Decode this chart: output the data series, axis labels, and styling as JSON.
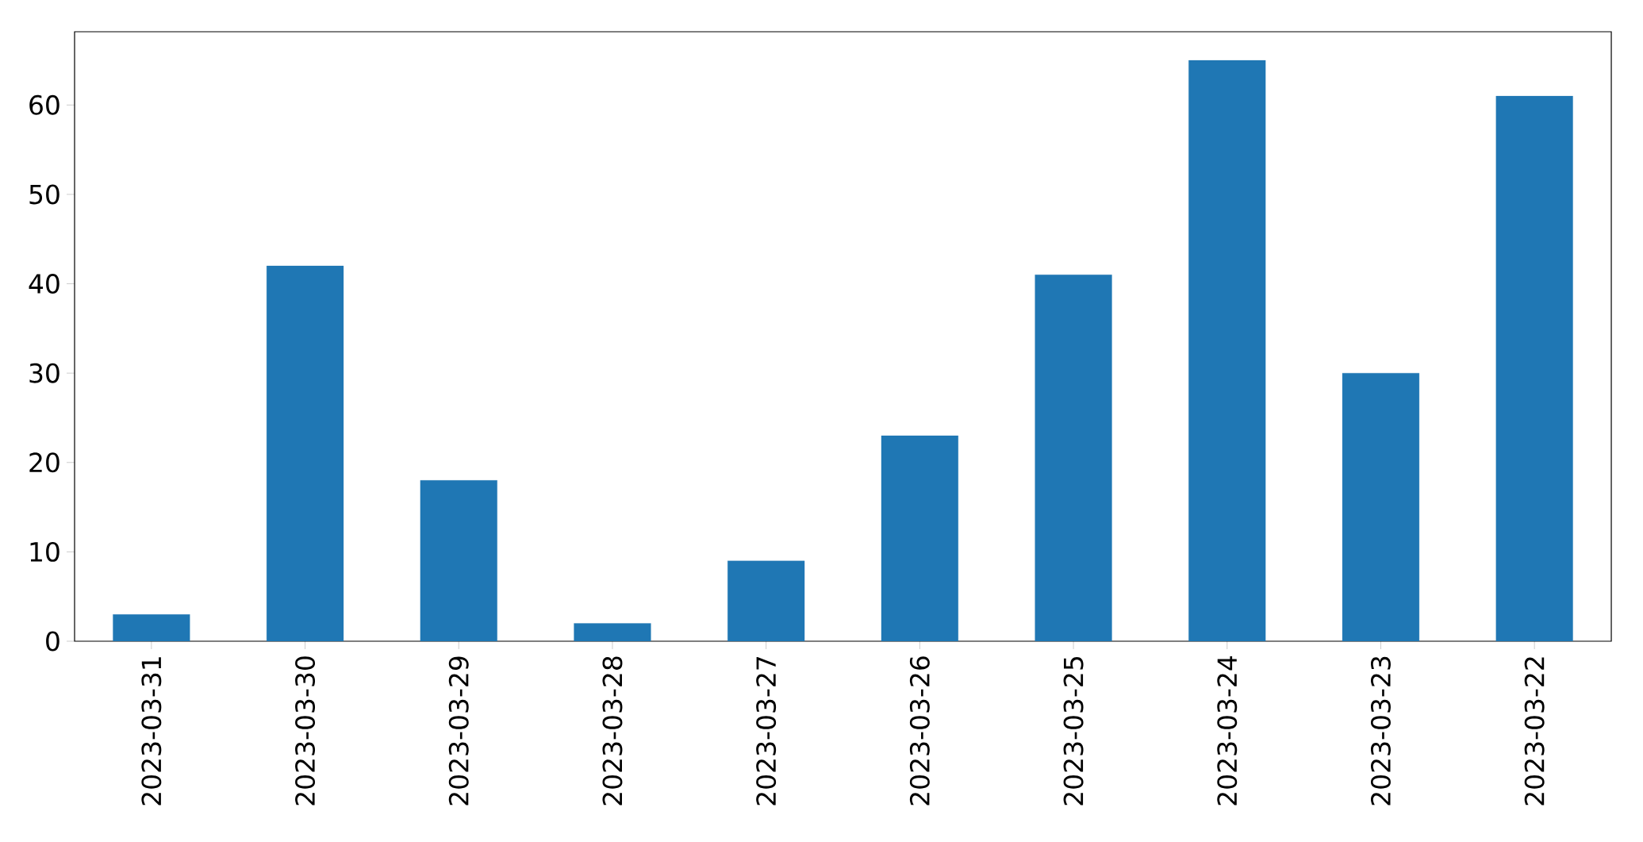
{
  "chart_data": {
    "type": "bar",
    "categories": [
      "2023-03-31",
      "2023-03-30",
      "2023-03-29",
      "2023-03-28",
      "2023-03-27",
      "2023-03-26",
      "2023-03-25",
      "2023-03-24",
      "2023-03-23",
      "2023-03-22"
    ],
    "values": [
      3,
      42,
      18,
      2,
      9,
      23,
      41,
      65,
      30,
      61
    ],
    "color": "#1f77b4",
    "ylim": [
      0,
      68.2
    ],
    "yticks": [
      0,
      10,
      20,
      30,
      40,
      50,
      60
    ],
    "grid": false
  }
}
